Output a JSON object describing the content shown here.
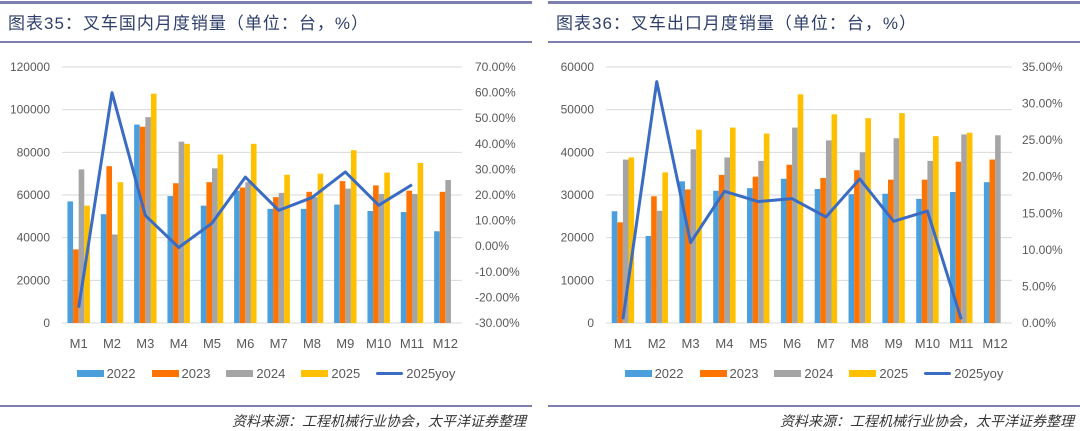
{
  "colors": {
    "2022": "#4a9fdc",
    "2023": "#ff7300",
    "2024": "#a5a5a5",
    "2025": "#ffc000",
    "yoy": "#3b6cc4",
    "rule": "#7d7fb0"
  },
  "chart_data": [
    {
      "type": "bar",
      "title": "图表35：叉车国内月度销量（单位：台，%）",
      "source": "资料来源：工程机械行业协会，太平洋证券整理",
      "categories": [
        "M1",
        "M2",
        "M3",
        "M4",
        "M5",
        "M6",
        "M7",
        "M8",
        "M9",
        "M10",
        "M11",
        "M12"
      ],
      "ylim": [
        0,
        120000
      ],
      "yticks": [
        "0",
        "20000",
        "40000",
        "60000",
        "80000",
        "100000",
        "120000"
      ],
      "y2lim": [
        -30,
        70
      ],
      "y2ticks": [
        "-30.00%",
        "-20.00%",
        "-10.00%",
        "0.00%",
        "10.00%",
        "20.00%",
        "30.00%",
        "40.00%",
        "50.00%",
        "60.00%",
        "70.00%"
      ],
      "grid": true,
      "legend_position": "bottom",
      "series": [
        {
          "name": "2022",
          "values": [
            57000,
            51000,
            93000,
            59500,
            55000,
            62000,
            53500,
            53500,
            55500,
            52500,
            52000,
            43000
          ]
        },
        {
          "name": "2023",
          "values": [
            34500,
            73500,
            92000,
            65500,
            66000,
            63500,
            59000,
            61500,
            66500,
            64500,
            62000,
            61500
          ]
        },
        {
          "name": "2024",
          "values": [
            72000,
            41500,
            96500,
            85000,
            72500,
            66000,
            61000,
            59000,
            63000,
            60500,
            60500,
            67000
          ]
        },
        {
          "name": "2025",
          "values": [
            55000,
            66000,
            107500,
            84000,
            79000,
            84000,
            69500,
            70000,
            81000,
            70500,
            75000,
            null
          ]
        }
      ],
      "line_series": {
        "name": "2025yoy",
        "axis": "right",
        "values": [
          -24,
          60,
          12,
          -0.5,
          9,
          27,
          14,
          19,
          29,
          16,
          24,
          null
        ]
      }
    },
    {
      "type": "bar",
      "title": "图表36：叉车出口月度销量（单位：台，%）",
      "source": "资料来源：工程机械行业协会，太平洋证券整理",
      "categories": [
        "M1",
        "M2",
        "M3",
        "M4",
        "M5",
        "M6",
        "M7",
        "M8",
        "M9",
        "M10",
        "M11",
        "M12"
      ],
      "ylim": [
        0,
        60000
      ],
      "yticks": [
        "0",
        "10000",
        "20000",
        "30000",
        "40000",
        "50000",
        "60000"
      ],
      "y2lim": [
        0,
        35
      ],
      "y2ticks": [
        "0.00%",
        "5.00%",
        "10.00%",
        "15.00%",
        "20.00%",
        "25.00%",
        "30.00%",
        "35.00%"
      ],
      "grid": true,
      "legend_position": "bottom",
      "series": [
        {
          "name": "2022",
          "values": [
            26200,
            20400,
            33200,
            31000,
            31600,
            33800,
            31400,
            30200,
            30300,
            29100,
            30700,
            33000
          ]
        },
        {
          "name": "2023",
          "values": [
            23600,
            29700,
            31300,
            34700,
            34300,
            37100,
            34000,
            35800,
            33600,
            33600,
            37800,
            38300
          ]
        },
        {
          "name": "2024",
          "values": [
            38300,
            26300,
            40700,
            38800,
            38000,
            45800,
            42800,
            40000,
            43300,
            38000,
            44200,
            44000
          ]
        },
        {
          "name": "2025",
          "values": [
            38800,
            35300,
            45300,
            45800,
            44400,
            53600,
            48900,
            48000,
            49200,
            43800,
            44600,
            null
          ]
        }
      ],
      "line_series": {
        "name": "2025yoy",
        "axis": "right",
        "values": [
          0.5,
          33,
          11,
          18,
          16.6,
          17,
          14.5,
          19.7,
          13.9,
          15.3,
          0.5,
          null
        ]
      }
    }
  ]
}
